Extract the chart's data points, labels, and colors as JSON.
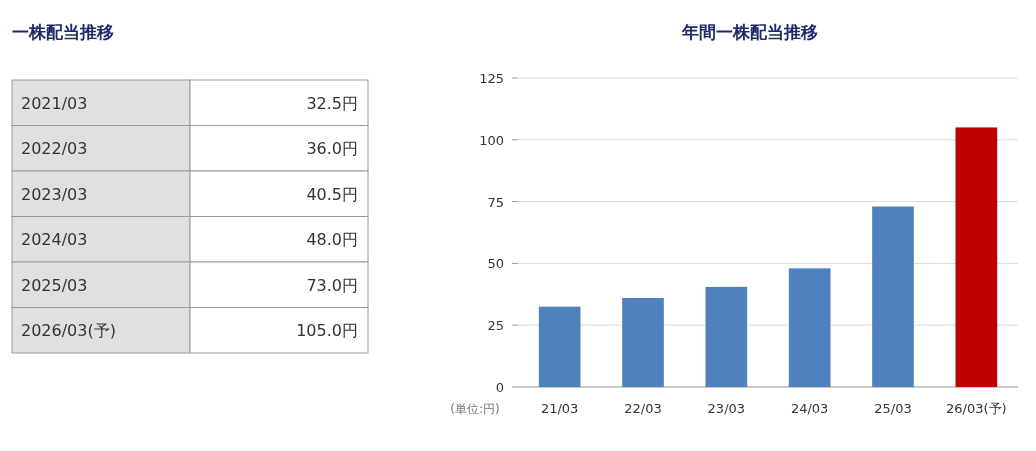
{
  "chart_data": [
    {
      "type": "other",
      "title": "一株配当推移",
      "categories": [
        "2021/03",
        "2022/03",
        "2023/03",
        "2024/03",
        "2025/03",
        "2026/03(予)"
      ],
      "value_labels": [
        "32.5円",
        "36.0円",
        "40.5円",
        "48.0円",
        "73.0円",
        "105.0円"
      ]
    },
    {
      "type": "bar",
      "title": "年間一株配当推移",
      "categories": [
        "21/03",
        "22/03",
        "23/03",
        "24/03",
        "25/03",
        "26/03(予)"
      ],
      "values": [
        32.5,
        36.0,
        40.5,
        48.0,
        73.0,
        105.0
      ],
      "colors": [
        "#4f81bd",
        "#4f81bd",
        "#4f81bd",
        "#4f81bd",
        "#4f81bd",
        "#c00000"
      ],
      "ylim": [
        0,
        125
      ],
      "yticks": [
        0,
        25,
        50,
        75,
        100,
        125
      ],
      "grid": "y",
      "annotations": [
        "(単位:円)"
      ]
    }
  ]
}
